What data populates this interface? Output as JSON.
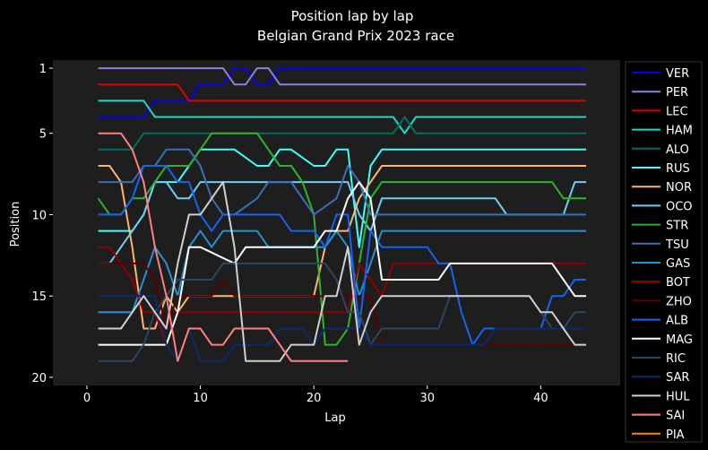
{
  "chart_data": {
    "type": "line",
    "title": "Position lap by lap",
    "subtitle": "Belgian Grand Prix 2023 race",
    "xlabel": "Lap",
    "ylabel": "Position",
    "xlim": [
      -3,
      47
    ],
    "ylim": [
      20.5,
      0.5
    ],
    "y_inverted": true,
    "xticks": [
      0,
      10,
      20,
      30,
      40
    ],
    "yticks": [
      1,
      5,
      10,
      15,
      20
    ],
    "grid": false,
    "legend": "right-outside",
    "colors": {
      "background": "#000000",
      "plot_background": "#1e1e1e",
      "text": "#ffffff"
    },
    "series": [
      {
        "name": "VER",
        "color": "#0600ef",
        "x": [
          1,
          5,
          6,
          9,
          10,
          12,
          13,
          14,
          15,
          16,
          17,
          44
        ],
        "y": [
          4,
          4,
          3,
          3,
          2,
          2,
          1,
          1,
          2,
          2,
          1,
          1
        ]
      },
      {
        "name": "PER",
        "color": "#8d7fe0",
        "x": [
          1,
          12,
          13,
          14,
          15,
          16,
          17,
          44
        ],
        "y": [
          1,
          1,
          2,
          2,
          1,
          1,
          2,
          2
        ]
      },
      {
        "name": "LEC",
        "color": "#dc0000",
        "x": [
          1,
          8,
          9,
          44
        ],
        "y": [
          2,
          2,
          3,
          3
        ]
      },
      {
        "name": "HAM",
        "color": "#20d8c8",
        "x": [
          1,
          5,
          6,
          27,
          28,
          29,
          44
        ],
        "y": [
          3,
          3,
          4,
          4,
          5,
          4,
          4
        ]
      },
      {
        "name": "ALO",
        "color": "#006f62",
        "x": [
          1,
          3,
          4,
          5,
          27,
          28,
          29,
          44
        ],
        "y": [
          6,
          6,
          6,
          5,
          5,
          4,
          5,
          5
        ]
      },
      {
        "name": "RUS",
        "color": "#40ffff",
        "x": [
          1,
          4,
          5,
          6,
          8,
          9,
          10,
          12,
          13,
          15,
          16,
          17,
          18,
          20,
          21,
          22,
          23,
          24,
          25,
          26,
          44
        ],
        "y": [
          11,
          11,
          10,
          8,
          8,
          7,
          6,
          6,
          6,
          7,
          7,
          6,
          6,
          7,
          7,
          6,
          6,
          12,
          7,
          6,
          6
        ]
      },
      {
        "name": "NOR",
        "color": "#ffb56b",
        "x": [
          1,
          2,
          3,
          4,
          5,
          6,
          7,
          8,
          9,
          10,
          20,
          21,
          22,
          23,
          24,
          25,
          26,
          44
        ],
        "y": [
          7,
          7,
          8,
          12,
          17,
          17,
          15,
          16,
          15,
          15,
          15,
          12,
          11,
          11,
          9,
          8,
          7,
          7
        ]
      },
      {
        "name": "OCO",
        "color": "#6ecff6",
        "x": [
          1,
          2,
          3,
          4,
          5,
          6,
          7,
          8,
          9,
          10,
          11,
          12,
          23,
          24,
          25,
          26,
          27,
          36,
          37,
          42,
          43,
          44
        ],
        "y": [
          13,
          13,
          12,
          11,
          10,
          8,
          8,
          9,
          9,
          8,
          8,
          8,
          8,
          10,
          11,
          9,
          9,
          9,
          10,
          10,
          8,
          8
        ]
      },
      {
        "name": "STR",
        "color": "#2bb52b",
        "x": [
          1,
          2,
          3,
          4,
          5,
          6,
          7,
          8,
          9,
          10,
          11,
          15,
          16,
          17,
          18,
          19,
          20,
          21,
          22,
          23,
          24,
          25,
          26,
          41,
          42,
          44
        ],
        "y": [
          9,
          10,
          10,
          9,
          9,
          8,
          7,
          7,
          7,
          6,
          5,
          5,
          6,
          7,
          7,
          8,
          10,
          18,
          18,
          17,
          13,
          9,
          8,
          8,
          9,
          9
        ]
      },
      {
        "name": "TSU",
        "color": "#3a6fb5",
        "x": [
          1,
          4,
          5,
          6,
          7,
          8,
          9,
          10,
          11,
          12,
          13,
          15,
          16,
          17,
          18,
          19,
          20,
          22,
          23,
          24,
          25,
          26,
          44
        ],
        "y": [
          8,
          8,
          7,
          7,
          6,
          6,
          6,
          7,
          9,
          10,
          10,
          9,
          8,
          8,
          8,
          9,
          10,
          9,
          7,
          8,
          10,
          10,
          10
        ]
      },
      {
        "name": "GAS",
        "color": "#2293d1",
        "x": [
          1,
          4,
          5,
          6,
          7,
          8,
          9,
          10,
          11,
          12,
          15,
          16,
          17,
          18,
          19,
          20,
          21,
          22,
          23,
          24,
          25,
          26,
          44
        ],
        "y": [
          16,
          16,
          14,
          12,
          13,
          15,
          12,
          11,
          12,
          11,
          11,
          12,
          12,
          12,
          12,
          12,
          12,
          11,
          12,
          15,
          13,
          11,
          11
        ]
      },
      {
        "name": "BOT",
        "color": "#900000",
        "x": [
          1,
          2,
          3,
          4,
          5,
          6,
          7,
          8,
          9,
          10,
          13,
          23,
          24,
          25,
          26,
          27,
          44
        ],
        "y": [
          12,
          12,
          13,
          14,
          16,
          16,
          18,
          16,
          16,
          16,
          16,
          16,
          13,
          14,
          15,
          13,
          13
        ]
      },
      {
        "name": "ZHO",
        "color": "#5a0000",
        "x": [
          1,
          5,
          6,
          7,
          8,
          9,
          10,
          11,
          12,
          13,
          25,
          26,
          44
        ],
        "y": [
          13,
          13,
          14,
          17,
          15,
          15,
          15,
          15,
          14,
          15,
          15,
          18,
          18
        ]
      },
      {
        "name": "ALB",
        "color": "#1464f4",
        "x": [
          1,
          3,
          4,
          5,
          6,
          7,
          8,
          9,
          10,
          11,
          12,
          13,
          17,
          18,
          19,
          20,
          21,
          22,
          23,
          24,
          25,
          26,
          27,
          30,
          31,
          32,
          33,
          34,
          35,
          36,
          40,
          41,
          42,
          43,
          44
        ],
        "y": [
          10,
          10,
          9,
          7,
          7,
          7,
          8,
          8,
          10,
          11,
          10,
          10,
          10,
          11,
          11,
          11,
          12,
          10,
          10,
          17,
          11,
          12,
          12,
          12,
          13,
          13,
          16,
          18,
          17,
          17,
          17,
          15,
          15,
          14,
          14
        ]
      },
      {
        "name": "MAG",
        "color": "#ffffff",
        "x": [
          1,
          7,
          8,
          9,
          10,
          13,
          14,
          20,
          21,
          22,
          23,
          24,
          25,
          26,
          30,
          31,
          32,
          41,
          42,
          43,
          44
        ],
        "y": [
          18,
          18,
          16,
          12,
          12,
          13,
          12,
          12,
          11,
          11,
          9,
          8,
          9,
          14,
          14,
          14,
          13,
          13,
          14,
          15,
          15
        ]
      },
      {
        "name": "RIC",
        "color": "#2b4562",
        "x": [
          1,
          4,
          5,
          6,
          8,
          9,
          10,
          11,
          12,
          13,
          14,
          19,
          20,
          21,
          22,
          23,
          24,
          25,
          26,
          31,
          32,
          39,
          40,
          41,
          42,
          43,
          44
        ],
        "y": [
          19,
          19,
          18,
          16,
          14,
          14,
          14,
          14,
          13,
          13,
          13,
          13,
          13,
          13,
          14,
          16,
          16,
          18,
          17,
          17,
          15,
          15,
          16,
          17,
          17,
          16,
          16
        ]
      },
      {
        "name": "SAR",
        "color": "#0a2a6e",
        "x": [
          1,
          6,
          7,
          8,
          9,
          10,
          11,
          12,
          13,
          16,
          17,
          19,
          20,
          21,
          22,
          24,
          25,
          27,
          28,
          35,
          36,
          42,
          43,
          44
        ],
        "y": [
          15,
          15,
          18,
          19,
          17,
          19,
          19,
          19,
          18,
          18,
          17,
          17,
          18,
          17,
          17,
          17,
          18,
          18,
          18,
          18,
          17,
          17,
          17,
          17
        ]
      },
      {
        "name": "HUL",
        "color": "#d0d0d0",
        "x": [
          1,
          3,
          4,
          5,
          6,
          7,
          8,
          9,
          10,
          11,
          12,
          13,
          14,
          15,
          17,
          18,
          20,
          21,
          22,
          23,
          24,
          25,
          26,
          27,
          39,
          40,
          41,
          42,
          43,
          44
        ],
        "y": [
          17,
          17,
          16,
          15,
          16,
          17,
          13,
          10,
          10,
          9,
          8,
          12,
          19,
          19,
          19,
          18,
          18,
          15,
          15,
          12,
          18,
          16,
          15,
          15,
          15,
          16,
          16,
          17,
          18,
          18
        ]
      },
      {
        "name": "SAI",
        "color": "#ff8080",
        "x": [
          1,
          2,
          3,
          4,
          5,
          6,
          7,
          8,
          9,
          10,
          11,
          12,
          13,
          14,
          16,
          17,
          18,
          19,
          20,
          23
        ],
        "y": [
          5,
          5,
          5,
          6,
          8,
          12,
          15,
          19,
          17,
          17,
          18,
          18,
          17,
          17,
          17,
          18,
          19,
          19,
          19,
          19
        ]
      },
      {
        "name": "PIA",
        "color": "#ff8700",
        "x": [],
        "y": []
      }
    ]
  }
}
